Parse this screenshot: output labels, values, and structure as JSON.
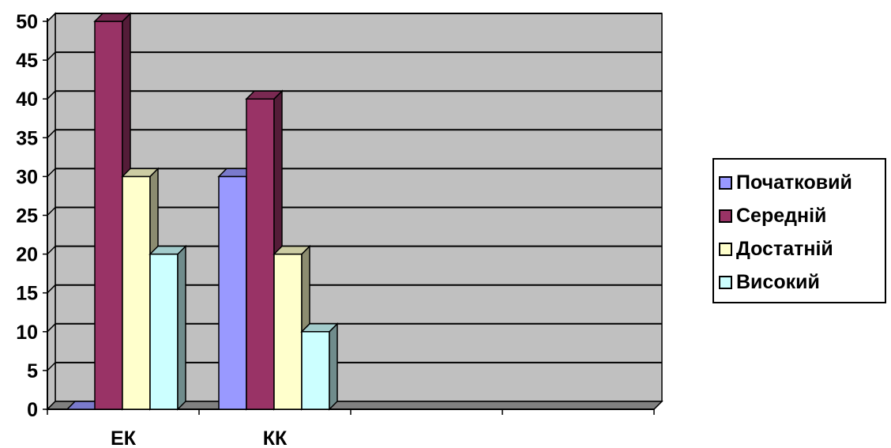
{
  "chart_data": {
    "type": "bar",
    "categories": [
      "ЕК",
      "КК",
      "",
      ""
    ],
    "series": [
      {
        "name": "Початковий",
        "values": [
          0,
          30,
          null,
          null
        ]
      },
      {
        "name": "Середній",
        "values": [
          50,
          40,
          null,
          null
        ]
      },
      {
        "name": "Достатній",
        "values": [
          30,
          20,
          null,
          null
        ]
      },
      {
        "name": "Високий",
        "values": [
          20,
          10,
          null,
          null
        ]
      }
    ],
    "title": "",
    "xlabel": "",
    "ylabel": "",
    "ylim": [
      0,
      50
    ],
    "yticks": [
      "0",
      "5",
      "10",
      "15",
      "20",
      "25",
      "30",
      "35",
      "40",
      "45",
      "50"
    ],
    "grid": true,
    "legend_position": "right",
    "style": "3d-clustered-column"
  },
  "legend": {
    "items": [
      {
        "label": "Початковий",
        "color": "#9999ff"
      },
      {
        "label": "Середній",
        "color": "#993366"
      },
      {
        "label": "Достатній",
        "color": "#ffffcc"
      },
      {
        "label": "Високий",
        "color": "#ccffff"
      }
    ]
  },
  "colors": {
    "plot_background": "#c0c0c0",
    "gridline": "#000000",
    "floor": "#808080"
  }
}
